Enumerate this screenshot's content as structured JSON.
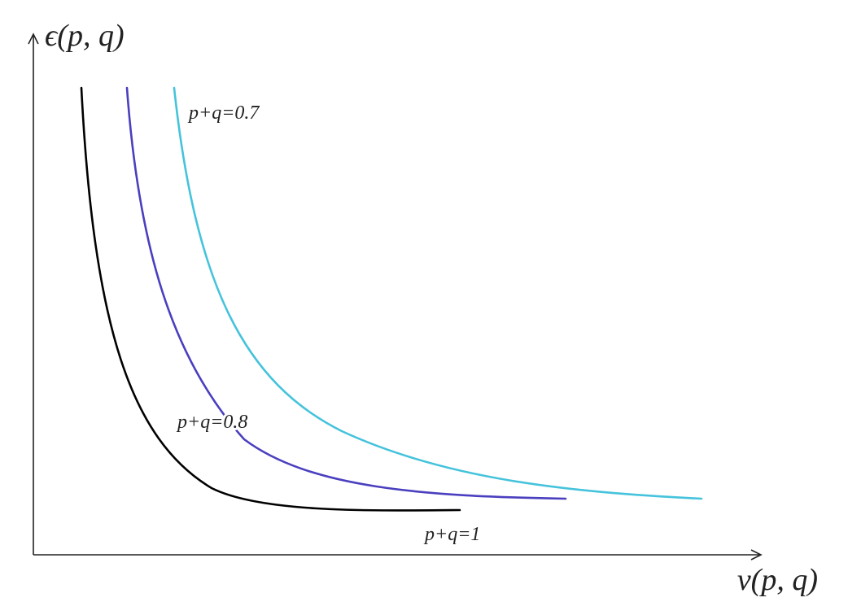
{
  "axes": {
    "y_label": "ϵ(p, q)",
    "x_label": "ν(p, q)"
  },
  "curves": [
    {
      "label": "p+q=0.7"
    },
    {
      "label": "p+q=0.8"
    },
    {
      "label": "p+q=1"
    }
  ]
}
